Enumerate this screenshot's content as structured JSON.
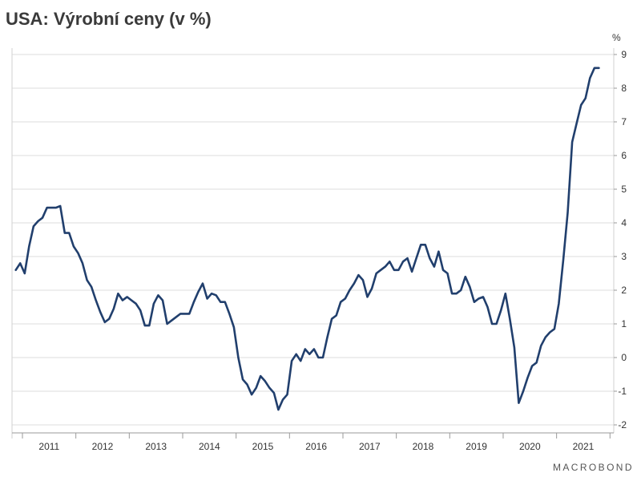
{
  "chart_data": {
    "type": "line",
    "title": "USA: Výrobní ceny (v %)",
    "yunit": "%",
    "ylim": [
      -2,
      9
    ],
    "yticks": [
      9,
      8,
      7,
      6,
      5,
      4,
      3,
      2,
      1,
      0,
      -1,
      -2
    ],
    "xlim": [
      "2010-11",
      "2021-12"
    ],
    "xticks": [
      "2011",
      "2012",
      "2013",
      "2014",
      "2015",
      "2016",
      "2017",
      "2018",
      "2019",
      "2020",
      "2021"
    ],
    "grid": true,
    "color": "#213f6d",
    "x": [
      "2010-11",
      "2010-12",
      "2011-01",
      "2011-02",
      "2011-03",
      "2011-04",
      "2011-05",
      "2011-06",
      "2011-07",
      "2011-08",
      "2011-09",
      "2011-10",
      "2011-11",
      "2011-12",
      "2012-01",
      "2012-02",
      "2012-03",
      "2012-04",
      "2012-05",
      "2012-06",
      "2012-07",
      "2012-08",
      "2012-09",
      "2012-10",
      "2012-11",
      "2012-12",
      "2013-01",
      "2013-02",
      "2013-03",
      "2013-04",
      "2013-05",
      "2013-06",
      "2013-07",
      "2013-08",
      "2013-09",
      "2013-10",
      "2013-11",
      "2013-12",
      "2014-01",
      "2014-02",
      "2014-03",
      "2014-04",
      "2014-05",
      "2014-06",
      "2014-07",
      "2014-08",
      "2014-09",
      "2014-10",
      "2014-11",
      "2014-12",
      "2015-01",
      "2015-02",
      "2015-03",
      "2015-04",
      "2015-05",
      "2015-06",
      "2015-07",
      "2015-08",
      "2015-09",
      "2015-10",
      "2015-11",
      "2015-12",
      "2016-01",
      "2016-02",
      "2016-03",
      "2016-04",
      "2016-05",
      "2016-06",
      "2016-07",
      "2016-08",
      "2016-09",
      "2016-10",
      "2016-11",
      "2016-12",
      "2017-01",
      "2017-02",
      "2017-03",
      "2017-04",
      "2017-05",
      "2017-06",
      "2017-07",
      "2017-08",
      "2017-09",
      "2017-10",
      "2017-11",
      "2017-12",
      "2018-01",
      "2018-02",
      "2018-03",
      "2018-04",
      "2018-05",
      "2018-06",
      "2018-07",
      "2018-08",
      "2018-09",
      "2018-10",
      "2018-11",
      "2018-12",
      "2019-01",
      "2019-02",
      "2019-03",
      "2019-04",
      "2019-05",
      "2019-06",
      "2019-07",
      "2019-08",
      "2019-09",
      "2019-10",
      "2019-11",
      "2019-12",
      "2020-01",
      "2020-02",
      "2020-03",
      "2020-04",
      "2020-05",
      "2020-06",
      "2020-07",
      "2020-08",
      "2020-09",
      "2020-10",
      "2020-11",
      "2020-12",
      "2021-01",
      "2021-02",
      "2021-03",
      "2021-04",
      "2021-05",
      "2021-06",
      "2021-07",
      "2021-08",
      "2021-09",
      "2021-10"
    ],
    "values": [
      2.6,
      2.8,
      2.5,
      3.3,
      3.9,
      4.05,
      4.15,
      4.45,
      4.45,
      4.45,
      4.5,
      3.7,
      3.7,
      3.3,
      3.1,
      2.8,
      2.3,
      2.1,
      1.7,
      1.35,
      1.05,
      1.15,
      1.45,
      1.9,
      1.7,
      1.8,
      1.7,
      1.6,
      1.4,
      0.95,
      0.95,
      1.6,
      1.85,
      1.7,
      1.0,
      1.1,
      1.2,
      1.3,
      1.3,
      1.3,
      1.65,
      1.95,
      2.2,
      1.75,
      1.9,
      1.85,
      1.65,
      1.65,
      1.3,
      0.9,
      0.0,
      -0.65,
      -0.8,
      -1.1,
      -0.9,
      -0.55,
      -0.7,
      -0.9,
      -1.05,
      -1.55,
      -1.25,
      -1.1,
      -0.1,
      0.1,
      -0.1,
      0.25,
      0.1,
      0.25,
      0.0,
      0.0,
      0.6,
      1.15,
      1.25,
      1.65,
      1.75,
      2.0,
      2.2,
      2.45,
      2.3,
      1.8,
      2.05,
      2.5,
      2.6,
      2.7,
      2.85,
      2.6,
      2.6,
      2.85,
      2.95,
      2.55,
      2.95,
      3.35,
      3.35,
      2.95,
      2.7,
      3.15,
      2.6,
      2.5,
      1.9,
      1.9,
      2.0,
      2.4,
      2.1,
      1.65,
      1.75,
      1.8,
      1.5,
      1.0,
      1.0,
      1.4,
      1.9,
      1.15,
      0.3,
      -1.35,
      -1.0,
      -0.6,
      -0.25,
      -0.15,
      0.35,
      0.6,
      0.75,
      0.85,
      1.6,
      2.9,
      4.3,
      6.4,
      6.95,
      7.5,
      7.7,
      8.3,
      8.6,
      8.6
    ]
  },
  "watermark": "MACROBOND"
}
